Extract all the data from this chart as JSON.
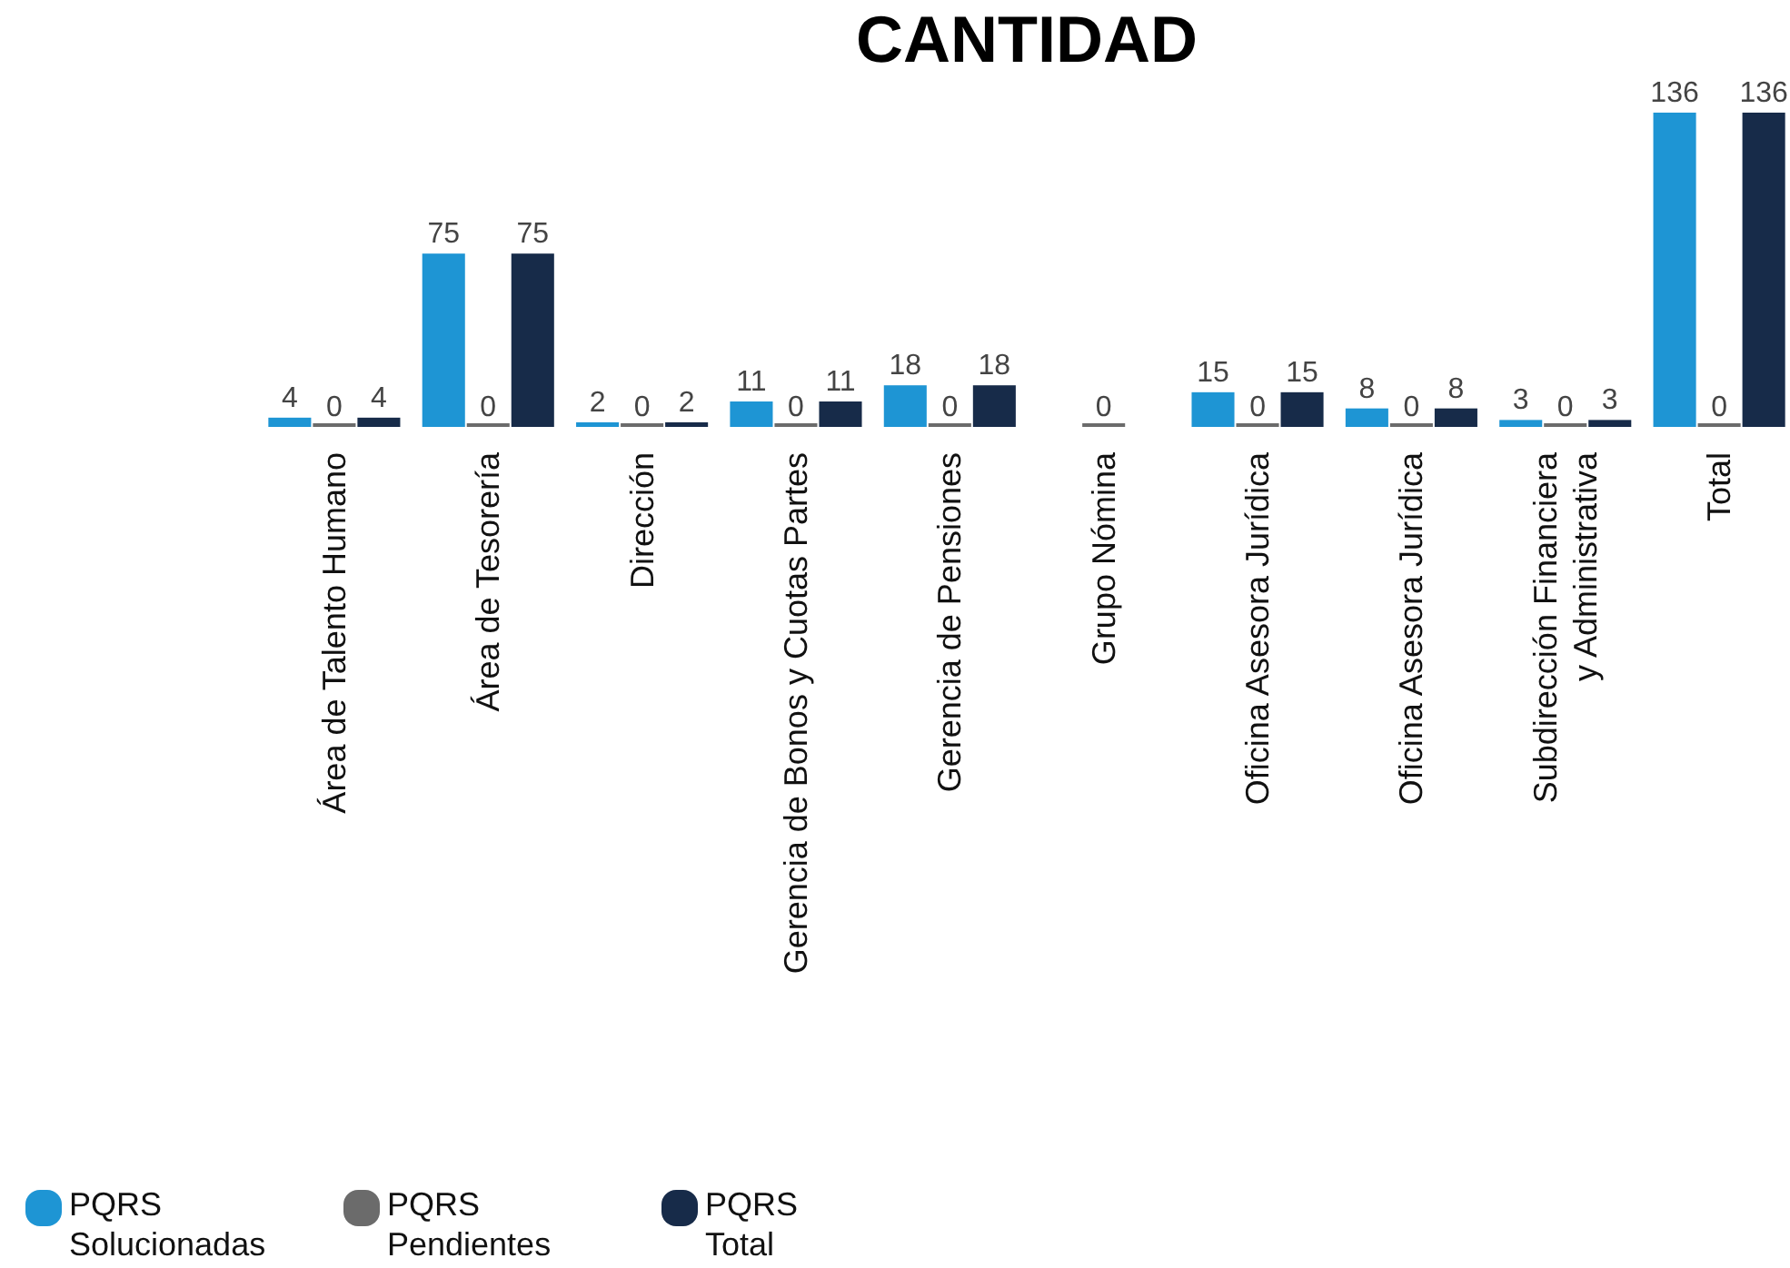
{
  "chart_data": {
    "type": "bar",
    "title": "CANTIDAD",
    "categories": [
      "Área de Talento Humano",
      "Área de Tesorería",
      "Dirección",
      "Gerencia de Bonos y Cuotas Partes",
      "Gerencia de Pensiones",
      "Grupo Nómina",
      "Oficina Asesora Jurídica",
      "Oficina Asesora Jurídica",
      "Subdirección Financiera\ny Administrativa",
      "Total"
    ],
    "series": [
      {
        "name": "PQRS\nSolucionadas",
        "color": "#1e95d4",
        "values": [
          4,
          75,
          2,
          11,
          18,
          null,
          15,
          8,
          3,
          136
        ]
      },
      {
        "name": "PQRS\nPendientes",
        "color": "#6b6b6b",
        "values": [
          0,
          0,
          0,
          0,
          0,
          0,
          0,
          0,
          0,
          0
        ]
      },
      {
        "name": "PQRS\nTotal",
        "color": "#172b49",
        "values": [
          4,
          75,
          2,
          11,
          18,
          null,
          15,
          8,
          3,
          136
        ]
      }
    ],
    "data_labels": true,
    "legend": "bottom left"
  }
}
